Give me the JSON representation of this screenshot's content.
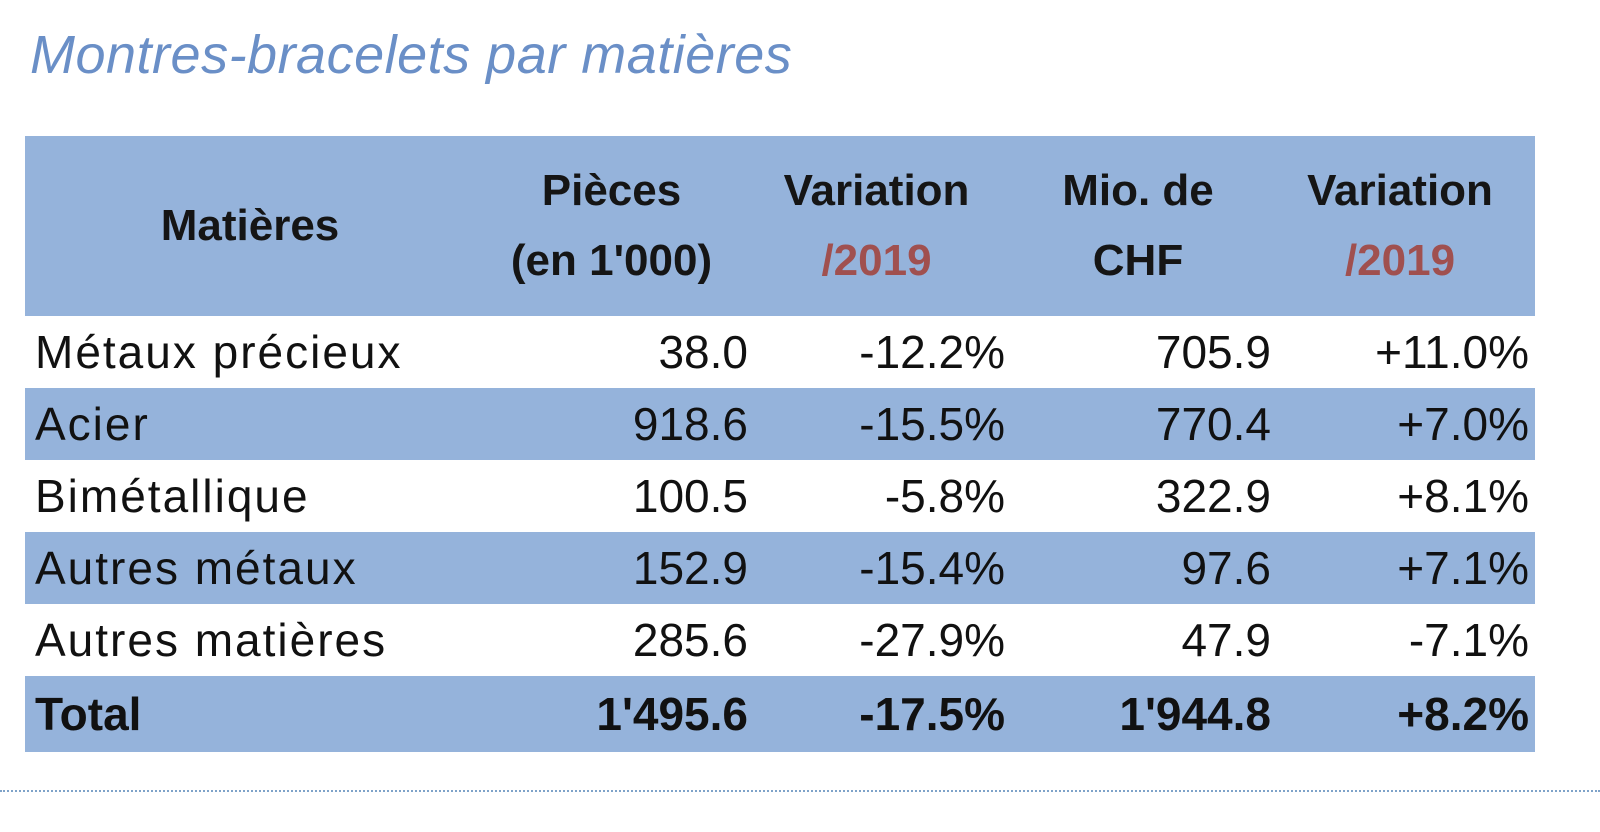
{
  "title": "Montres-bracelets par matières",
  "header": {
    "col1": "Matières",
    "col2_line1": "Pièces",
    "col2_line2": "(en 1'000)",
    "col3_line1": "Variation",
    "col3_line2": "/2019",
    "col4_line1": "Mio. de",
    "col4_line2": "CHF",
    "col5_line1": "Variation",
    "col5_line2": "/2019"
  },
  "rows": [
    {
      "name": "Métaux précieux",
      "pieces": "38.0",
      "var_pieces": "-12.2%",
      "chf": "705.9",
      "var_chf": "+11.0%"
    },
    {
      "name": "Acier",
      "pieces": "918.6",
      "var_pieces": "-15.5%",
      "chf": "770.4",
      "var_chf": "+7.0%"
    },
    {
      "name": "Bimétallique",
      "pieces": "100.5",
      "var_pieces": "-5.8%",
      "chf": "322.9",
      "var_chf": "+8.1%"
    },
    {
      "name": "Autres métaux",
      "pieces": "152.9",
      "var_pieces": "-15.4%",
      "chf": "97.6",
      "var_chf": "+7.1%"
    },
    {
      "name": "Autres matières",
      "pieces": "285.6",
      "var_pieces": "-27.9%",
      "chf": "47.9",
      "var_chf": "-7.1%"
    }
  ],
  "total": {
    "name": "Total",
    "pieces": "1'495.6",
    "var_pieces": "-17.5%",
    "chf": "1'944.8",
    "var_chf": "+8.2%"
  },
  "colors": {
    "header_bg": "#95b3db",
    "title": "#6a8fc7",
    "accent_red": "#a0504f"
  }
}
